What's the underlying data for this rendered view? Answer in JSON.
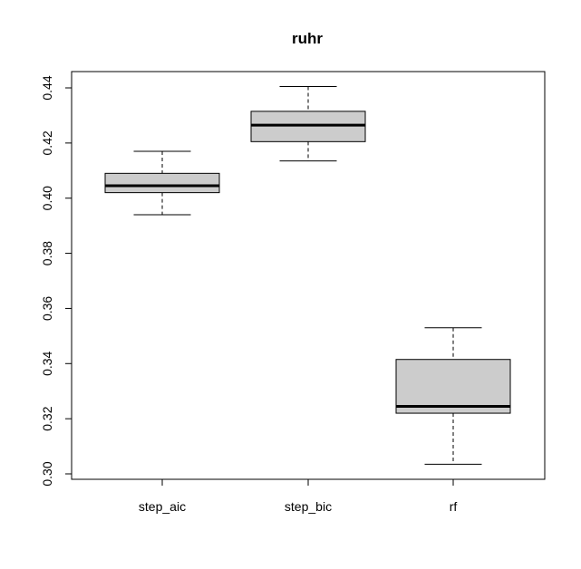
{
  "chart_data": {
    "type": "boxplot",
    "title": "ruhr",
    "xlabel": "",
    "ylabel": "",
    "ylim": [
      0.3,
      0.44
    ],
    "yticks": [
      0.3,
      0.32,
      0.34,
      0.36,
      0.38,
      0.4,
      0.42,
      0.44
    ],
    "ytick_labels": [
      "0.30",
      "0.32",
      "0.34",
      "0.36",
      "0.38",
      "0.40",
      "0.42",
      "0.44"
    ],
    "categories": [
      "step_aic",
      "step_bic",
      "rf"
    ],
    "boxes": [
      {
        "label": "step_aic",
        "whisker_low": 0.394,
        "q1": 0.402,
        "median": 0.4045,
        "q3": 0.409,
        "whisker_high": 0.417
      },
      {
        "label": "step_bic",
        "whisker_low": 0.4135,
        "q1": 0.4205,
        "median": 0.4265,
        "q3": 0.4315,
        "whisker_high": 0.4405
      },
      {
        "label": "rf",
        "whisker_low": 0.3035,
        "q1": 0.322,
        "median": 0.3245,
        "q3": 0.3415,
        "whisker_high": 0.353
      }
    ],
    "box_fill": "#cccccc",
    "grid": false
  }
}
